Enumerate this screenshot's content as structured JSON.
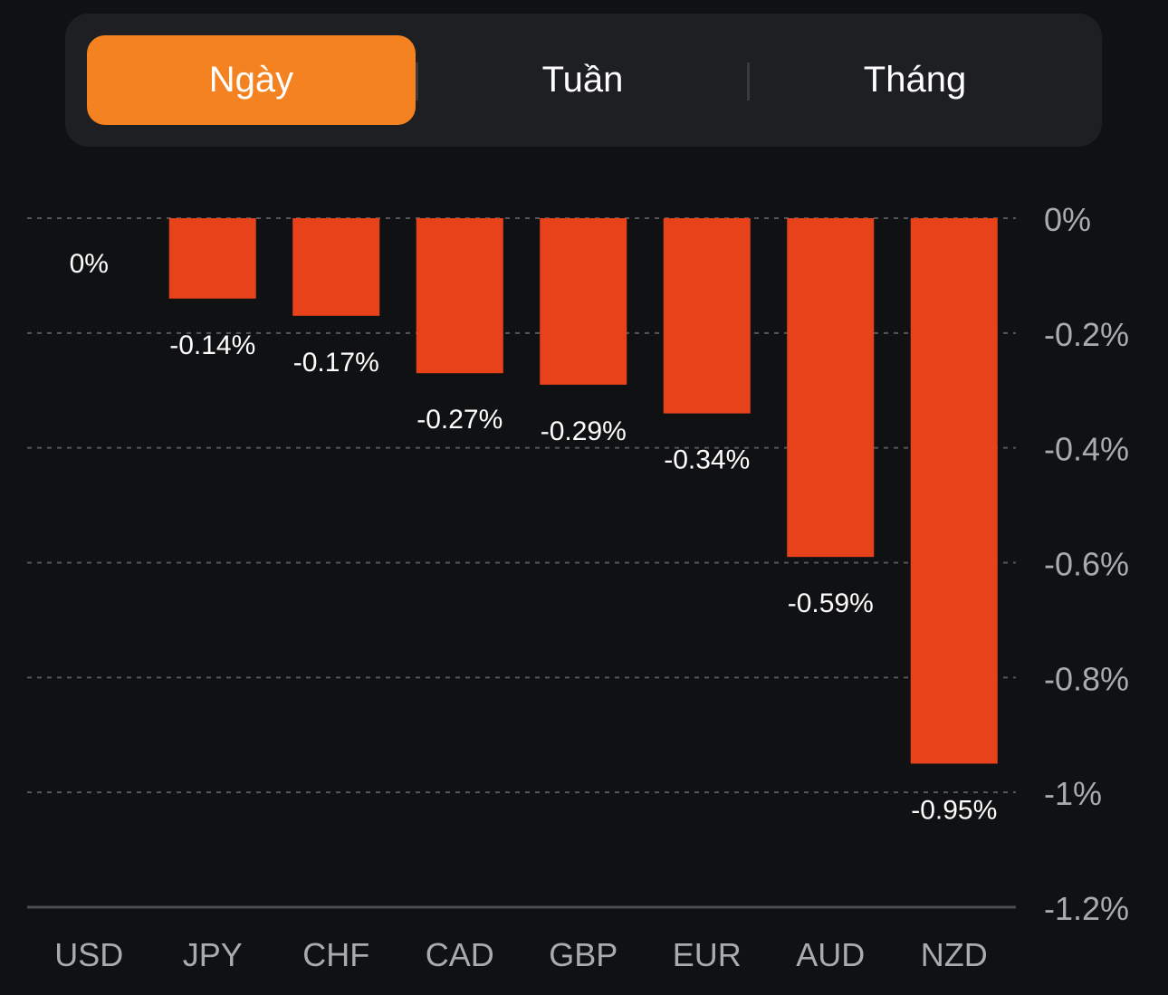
{
  "tabs": [
    {
      "label": "Ngày",
      "active": true
    },
    {
      "label": "Tuần",
      "active": false
    },
    {
      "label": "Tháng",
      "active": false
    }
  ],
  "colors": {
    "accent": "#f58220",
    "bar": "#e8421a",
    "background": "#101113",
    "panel": "#1e1f22",
    "axis_text": "#a9abb0",
    "label_text": "#ffffff"
  },
  "chart_data": {
    "type": "bar",
    "categories": [
      "USD",
      "JPY",
      "CHF",
      "CAD",
      "GBP",
      "EUR",
      "AUD",
      "NZD"
    ],
    "values": [
      0,
      -0.14,
      -0.17,
      -0.27,
      -0.29,
      -0.34,
      -0.59,
      -0.95
    ],
    "data_labels": [
      "0%",
      "-0.14%",
      "-0.17%",
      "-0.27%",
      "-0.29%",
      "-0.34%",
      "-0.59%",
      "-0.95%"
    ],
    "ylim": [
      -1.2,
      0
    ],
    "yticks": [
      0,
      -0.2,
      -0.4,
      -0.6,
      -0.8,
      -1,
      -1.2
    ],
    "ytick_labels": [
      "0%",
      "-0.2%",
      "-0.4%",
      "-0.6%",
      "-0.8%",
      "-1%",
      "-1.2%"
    ],
    "y_axis_side": "right",
    "grid": "dashed horizontal",
    "title": "",
    "xlabel": "",
    "ylabel": ""
  }
}
